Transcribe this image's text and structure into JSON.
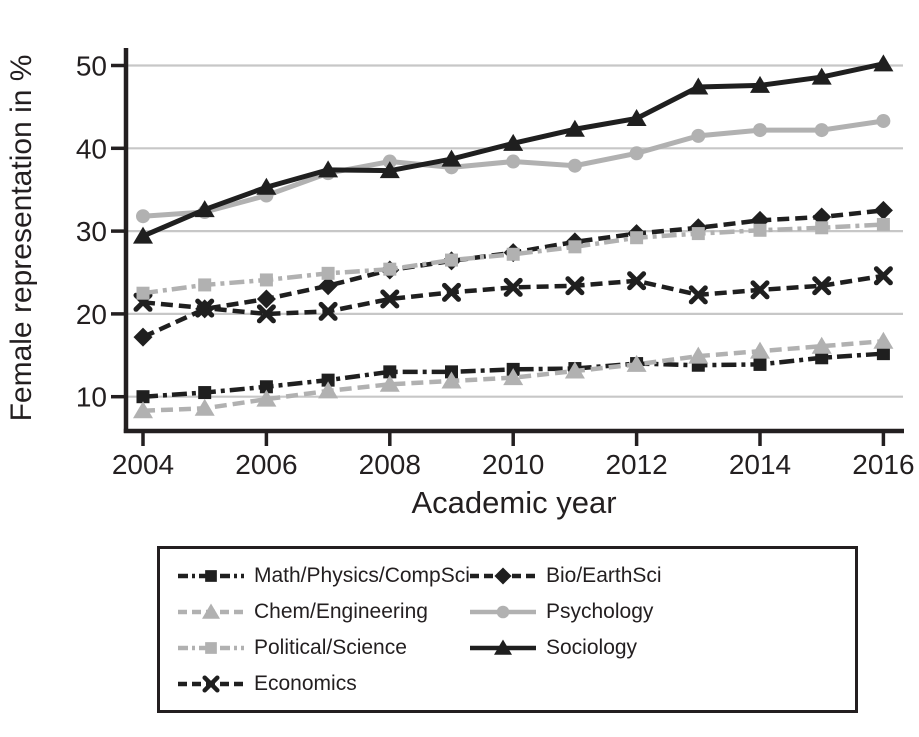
{
  "figure": {
    "background": "#ffffff",
    "text_color": "#231f20",
    "axis_color": "#231f20",
    "grid_color": "#c7c7c7",
    "series_black": "#1f1f1f",
    "series_gray": "#b1b1b1"
  },
  "chart_data": {
    "type": "line",
    "title": "",
    "xlabel": "Academic year",
    "ylabel": "Female representation in %",
    "x": [
      2004,
      2005,
      2006,
      2007,
      2008,
      2009,
      2010,
      2011,
      2012,
      2013,
      2014,
      2015,
      2016
    ],
    "x_ticks": [
      2004,
      2006,
      2008,
      2010,
      2012,
      2014,
      2016
    ],
    "y_ticks": [
      10,
      20,
      30,
      40,
      50
    ],
    "ylim": [
      6,
      52
    ],
    "grid": "horizontal",
    "legend_position": "boxed below chart, two columns",
    "series": [
      {
        "name": "Math/Physics/CompSci",
        "slug": "math-physics-compsci",
        "color": "#1f1f1f",
        "marker": "square",
        "line_style": "dash-dot",
        "values": [
          10.0,
          10.5,
          11.2,
          12.0,
          13.0,
          13.0,
          13.3,
          13.4,
          14.0,
          13.8,
          13.9,
          14.7,
          15.2
        ]
      },
      {
        "name": "Chem/Engineering",
        "slug": "chem-engineering",
        "color": "#b1b1b1",
        "marker": "triangle",
        "line_style": "dashed",
        "values": [
          8.3,
          8.6,
          9.7,
          10.7,
          11.5,
          11.9,
          12.3,
          13.1,
          13.9,
          14.9,
          15.5,
          16.1,
          16.7
        ]
      },
      {
        "name": "Political/Science",
        "slug": "political-science",
        "color": "#b1b1b1",
        "marker": "square",
        "line_style": "dash-dot",
        "values": [
          22.5,
          23.5,
          24.1,
          24.9,
          25.4,
          26.5,
          27.2,
          28.1,
          29.2,
          29.7,
          30.1,
          30.4,
          30.8
        ]
      },
      {
        "name": "Economics",
        "slug": "economics",
        "color": "#1f1f1f",
        "marker": "x",
        "line_style": "dashed",
        "values": [
          21.4,
          20.7,
          20.0,
          20.3,
          21.8,
          22.6,
          23.2,
          23.4,
          24.0,
          22.3,
          22.9,
          23.4,
          24.6
        ]
      },
      {
        "name": "Bio/EarthSci",
        "slug": "bio-earthsci",
        "color": "#1f1f1f",
        "marker": "diamond",
        "line_style": "dashed",
        "values": [
          17.2,
          20.6,
          21.8,
          23.4,
          25.3,
          26.4,
          27.4,
          28.7,
          29.7,
          30.4,
          31.3,
          31.7,
          32.5
        ]
      },
      {
        "name": "Psychology",
        "slug": "psychology",
        "color": "#b1b1b1",
        "marker": "circle",
        "line_style": "solid",
        "values": [
          31.8,
          32.3,
          34.3,
          37.0,
          38.4,
          37.7,
          38.4,
          37.9,
          39.4,
          41.5,
          42.2,
          42.2,
          43.3
        ]
      },
      {
        "name": "Sociology",
        "slug": "sociology",
        "color": "#1f1f1f",
        "marker": "triangle",
        "line_style": "solid",
        "values": [
          29.4,
          32.6,
          35.3,
          37.4,
          37.3,
          38.7,
          40.6,
          42.3,
          43.6,
          47.4,
          47.6,
          48.6,
          50.2
        ]
      }
    ],
    "draw_order": [
      0,
      4,
      3,
      1,
      2,
      5,
      6
    ],
    "legend_columns": [
      [
        0,
        1,
        2,
        3
      ],
      [
        4,
        5,
        6
      ]
    ]
  }
}
